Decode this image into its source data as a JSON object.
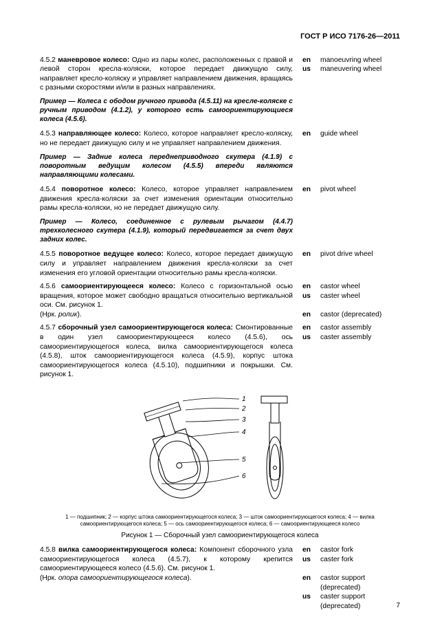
{
  "doc_id": "ГОСТ Р ИСО 7176-26—2011",
  "entries": [
    {
      "num_term": "4.5.2 <b class='term'>маневровое колесо:</b> ",
      "body": "Одно из пары колес, расположенных с правой и левой сторон кресла-коляски, которое передает движущую силу, направляет кресло-коляску и управляет направлением движения, вращаясь с разными скоростями и/или в разных направлениях.",
      "trans": [
        {
          "lang": "en",
          "txt": "manoeuvring wheel"
        },
        {
          "lang": "us",
          "txt": "maneuvering wheel"
        }
      ]
    }
  ],
  "example1": "Пример — Колеса с ободом ручного привода (4.5.11) на кресле-коляске с ручным приводом (4.1.2), у которого есть самоориентирующиеся колеса (4.5.6).",
  "entries2": [
    {
      "num_term": "4.5.3 <b class='term'>направляющее колесо:</b> ",
      "body": "Колесо, которое направляет кресло-коляску, но не передает движущую силу и не управляет направлением движения.",
      "trans": [
        {
          "lang": "en",
          "txt": "guide wheel"
        }
      ]
    }
  ],
  "example2": "Пример — Задние колеса переднеприводного скутера (4.1.9) с поворотным ведущим колесом (4.5.5) впереди являются направляющими колесами.",
  "entries3": [
    {
      "num_term": "4.5.4 <b class='term'>поворотное колесо:</b> ",
      "body": "Колесо, которое управляет направлением движения кресла-коляски за счет изменения ориентации относительно рамы кресла-коляски, но не передает движущую силу.",
      "trans": [
        {
          "lang": "en",
          "txt": "pivot wheel"
        }
      ]
    }
  ],
  "example3": "Пример — Колесо, соединенное с рулевым рычагом (4.4.7) трехколесного скутера (4.1.9), который передвигается за счет двух задних колес.",
  "entries4": [
    {
      "num_term": "4.5.5 <b class='term'>поворотное ведущее колесо:</b> ",
      "body": "Колесо, которое передает движущую силу и управляет направлением движения кресла-коляски за счет изменения его угловой ориентации относительно рамы кресла-коляски.",
      "trans": [
        {
          "lang": "en",
          "txt": "pivot drive wheel"
        }
      ]
    },
    {
      "num_term": "4.5.6 <b class='term'>самоориентирующееся колесо:</b> ",
      "body": "Колесо с горизонтальной осью вращения, которое может свободно вращаться относительно вертикальной оси. См. рисунок 1.<br>(Нрк. <i>ролик</i>).",
      "trans": [
        {
          "lang": "en",
          "txt": "castor wheel"
        },
        {
          "lang": "us",
          "txt": "caster wheel"
        },
        {
          "lang": "",
          "txt": "&nbsp;"
        },
        {
          "lang": "en",
          "txt": "castor (deprecated)"
        }
      ]
    },
    {
      "num_term": "4.5.7 <b class='term'>сборочный узел самоориентирующегося колеса:</b> ",
      "body": "Смонтированные в один узел самоориентирующееся колесо (4.5.6), ось самоориентирующегося колеса, вилка самоориентирующегося колеса (4.5.8), шток самоориентирующегося колеса (4.5.9), корпус штока самоориентирующегося колеса (4.5.10), подшипники и покрышки. См. рисунок 1.",
      "trans": [
        {
          "lang": "en",
          "txt": "castor assembly"
        },
        {
          "lang": "us",
          "txt": "caster assembly"
        }
      ]
    }
  ],
  "figure": {
    "caption": "Рисунок 1 — Сборочный узел самоориентирующегося колеса",
    "legend": "1 — подшипник; 2 — корпус штока самоориентирующегося колеса; 3 — шток самоориентирующегося колеса; 4 — вилка самоориентирующегося колеса; 5 — ось самоориентирующегося колеса; 6 — самоориентирующееся колесо",
    "labels": [
      "1",
      "2",
      "3",
      "4",
      "5",
      "6"
    ],
    "stroke": "#000000",
    "fill": "#ffffff"
  },
  "entries5": [
    {
      "num_term": "4.5.8 <b class='term'>вилка самоориентирующегося колеса:</b> ",
      "body": "Компонент сборочного узла самоориентирующегося колеса (4.5.7), к которому крепится самоориентирующееся колесо (4.5.6).  См. рисунок 1.<br>(Нрк. <i>опора самоориентирующегося колеса</i>).",
      "trans": [
        {
          "lang": "en",
          "txt": "castor fork"
        },
        {
          "lang": "us",
          "txt": "caster fork"
        },
        {
          "lang": "",
          "txt": "&nbsp;"
        },
        {
          "lang": "en",
          "txt": "castor support (deprecated)"
        },
        {
          "lang": "us",
          "txt": "caster support (deprecated)"
        }
      ]
    }
  ],
  "page_number": "7"
}
